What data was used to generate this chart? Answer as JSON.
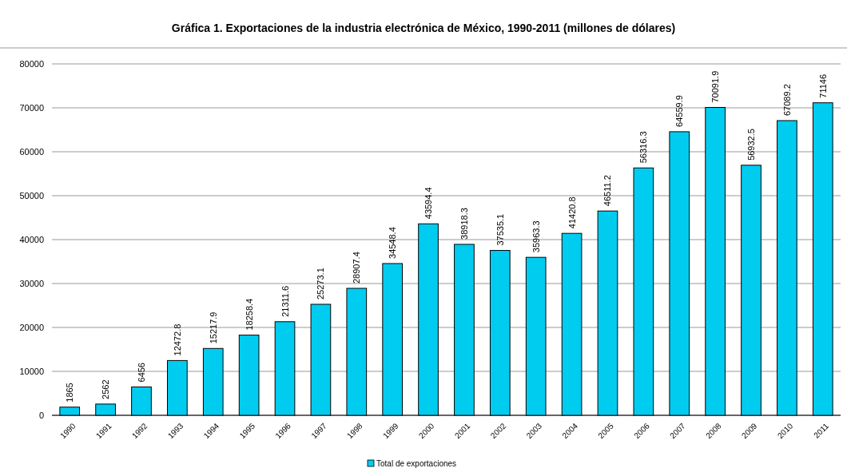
{
  "chart_data": {
    "type": "bar",
    "title": "Gráfica 1. Exportaciones de la industria electrónica de México, 1990-2011 (millones de dólares)",
    "categories": [
      "1990",
      "1991",
      "1992",
      "1993",
      "1994",
      "1995",
      "1996",
      "1997",
      "1998",
      "1999",
      "2000",
      "2001",
      "2002",
      "2003",
      "2004",
      "2005",
      "2006",
      "2007",
      "2008",
      "2009",
      "2010",
      "2011"
    ],
    "series": [
      {
        "name": "Total de exportaciones",
        "color": "#00ccf0",
        "values": [
          1865,
          2562,
          6456,
          12472.8,
          15217.9,
          18258.4,
          21311.6,
          25273.1,
          28907.4,
          34548.4,
          43594.4,
          38918.3,
          37535.1,
          35963.3,
          41420.8,
          46511.2,
          56316.3,
          64559.9,
          70091.9,
          56932.5,
          67089.2,
          71146
        ]
      }
    ],
    "ylim": [
      0,
      80000
    ],
    "yticks": [
      0,
      10000,
      20000,
      30000,
      40000,
      50000,
      60000,
      70000,
      80000
    ],
    "grid": "y",
    "legend": "bottom",
    "data_labels": true
  }
}
